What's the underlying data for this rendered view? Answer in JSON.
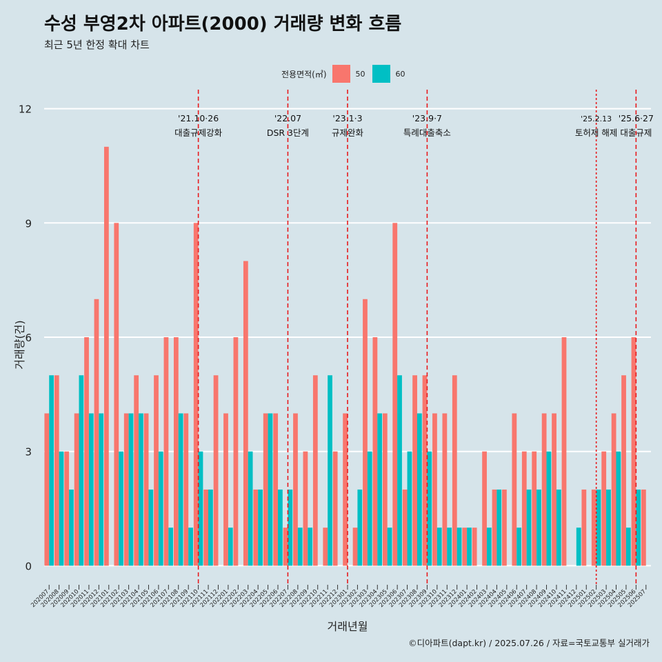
{
  "colors": {
    "background": "#d6e4ea",
    "s50": "#f8766d",
    "s60": "#00bfc4",
    "event_line": "#e8191c",
    "grid": "#ffffff"
  },
  "footer": "©디아파트(dapt.kr) / 2025.07.26 / 자료=국토교통부 실거래가",
  "chart_data": {
    "type": "bar",
    "title": "수성 부영2차 아파트(2000) 거래량 변화 흐름",
    "subtitle": "최근 5년 한정 확대 차트",
    "xlabel": "거래년월",
    "ylabel": "거래량(건)",
    "ylim": [
      -0.5,
      12.5
    ],
    "yticks": [
      "0",
      "3",
      "6",
      "9",
      "12"
    ],
    "legend": {
      "title": "전용면적(㎡)",
      "position": "top"
    },
    "categories": [
      "202007",
      "202008",
      "202009",
      "202010",
      "202011",
      "202012",
      "202101",
      "202102",
      "202103",
      "202104",
      "202105",
      "202106",
      "202107",
      "202108",
      "202109",
      "202110",
      "202111",
      "202112",
      "202201",
      "202202",
      "202203",
      "202204",
      "202205",
      "202206",
      "202207",
      "202208",
      "202209",
      "202210",
      "202211",
      "202212",
      "202301",
      "202302",
      "202303",
      "202304",
      "202305",
      "202306",
      "202307",
      "202308",
      "202309",
      "202310",
      "202311",
      "202312",
      "202401",
      "202402",
      "202403",
      "202404",
      "202405",
      "202406",
      "202407",
      "202408",
      "202409",
      "202410",
      "202411",
      "202412",
      "202501",
      "202502",
      "202503",
      "202504",
      "202505",
      "202506",
      "202507"
    ],
    "series": [
      {
        "name": "50",
        "values": [
          4,
          5,
          3,
          4,
          6,
          7,
          11,
          9,
          4,
          5,
          4,
          5,
          6,
          6,
          4,
          9,
          2,
          5,
          4,
          6,
          8,
          2,
          4,
          4,
          1,
          4,
          3,
          5,
          1,
          3,
          4,
          1,
          7,
          6,
          4,
          9,
          2,
          5,
          5,
          4,
          4,
          5,
          1,
          1,
          3,
          2,
          2,
          4,
          3,
          3,
          4,
          4,
          6,
          0,
          2,
          2,
          3,
          4,
          5,
          6,
          2
        ]
      },
      {
        "name": "60",
        "values": [
          5,
          3,
          2,
          5,
          4,
          4,
          0,
          3,
          4,
          4,
          2,
          3,
          1,
          4,
          1,
          3,
          2,
          0,
          1,
          0,
          3,
          2,
          4,
          2,
          2,
          1,
          1,
          0,
          5,
          0,
          0,
          2,
          3,
          4,
          1,
          5,
          3,
          4,
          3,
          1,
          1,
          1,
          1,
          0,
          1,
          2,
          0,
          1,
          2,
          2,
          3,
          2,
          0,
          1,
          0,
          2,
          2,
          3,
          1,
          2,
          0
        ]
      }
    ],
    "events": [
      {
        "category": "202110",
        "date": "'21.10·26",
        "label": "대출규제강화",
        "style": "dashed"
      },
      {
        "category": "202207",
        "date": "'22.07",
        "label": "DSR 3단계",
        "style": "dashed"
      },
      {
        "category": "202301",
        "date": "'23.1·3",
        "label": "규제완화",
        "style": "dashed"
      },
      {
        "category": "202309",
        "date": "'23.9·7",
        "label": "특례대출축소",
        "style": "dashed"
      },
      {
        "category": "202502",
        "date": "'25.2.13",
        "label": "토허제 해제",
        "style": "dotted"
      },
      {
        "category": "202506",
        "date": "'25.6·27",
        "label": "대출규제",
        "style": "dashed"
      }
    ]
  }
}
